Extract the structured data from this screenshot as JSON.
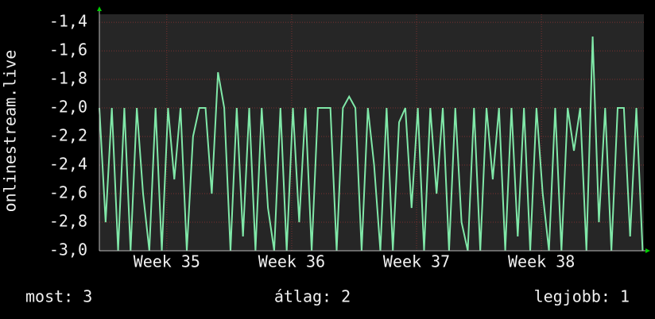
{
  "chart_data": {
    "type": "line",
    "ylabel": "onlinestream.live",
    "x": [
      34.46,
      34.51,
      34.56,
      34.61,
      34.66,
      34.71,
      34.76,
      34.81,
      34.86,
      34.91,
      34.96,
      35.01,
      35.06,
      35.11,
      35.16,
      35.21,
      35.26,
      35.31,
      35.36,
      35.41,
      35.46,
      35.51,
      35.56,
      35.61,
      35.66,
      35.71,
      35.76,
      35.81,
      35.86,
      35.91,
      35.96,
      36.01,
      36.06,
      36.11,
      36.16,
      36.21,
      36.26,
      36.31,
      36.36,
      36.41,
      36.46,
      36.51,
      36.56,
      36.61,
      36.66,
      36.71,
      36.76,
      36.81,
      36.86,
      36.91,
      36.96,
      37.01,
      37.06,
      37.11,
      37.16,
      37.21,
      37.26,
      37.31,
      37.36,
      37.41,
      37.46,
      37.51,
      37.56,
      37.61,
      37.66,
      37.71,
      37.76,
      37.81,
      37.86,
      37.91,
      37.96,
      38.01,
      38.06,
      38.11,
      38.16,
      38.21,
      38.26,
      38.31,
      38.36,
      38.41,
      38.46,
      38.51,
      38.56,
      38.61,
      38.66,
      38.71,
      38.76,
      38.81
    ],
    "series": [
      {
        "name": "onlinestream.live",
        "color": "#80e8a8",
        "values": [
          -2.0,
          -2.8,
          -2.0,
          -3.0,
          -2.0,
          -3.0,
          -2.0,
          -2.6,
          -3.0,
          -2.0,
          -3.0,
          -2.0,
          -2.5,
          -2.0,
          -3.0,
          -2.2,
          -2.0,
          -2.0,
          -2.6,
          -1.75,
          -2.0,
          -3.0,
          -2.0,
          -2.9,
          -2.0,
          -3.0,
          -2.0,
          -2.7,
          -3.0,
          -2.0,
          -3.0,
          -2.0,
          -2.8,
          -2.0,
          -3.0,
          -2.0,
          -2.0,
          -2.0,
          -3.0,
          -2.0,
          -1.92,
          -2.0,
          -3.0,
          -2.0,
          -2.4,
          -3.0,
          -2.0,
          -3.0,
          -2.1,
          -2.0,
          -2.7,
          -2.0,
          -3.0,
          -2.0,
          -2.6,
          -2.0,
          -3.0,
          -2.0,
          -2.8,
          -3.0,
          -2.0,
          -3.0,
          -2.0,
          -2.5,
          -2.0,
          -3.0,
          -2.0,
          -2.9,
          -2.0,
          -3.0,
          -2.0,
          -2.6,
          -3.0,
          -2.0,
          -3.0,
          -2.0,
          -2.3,
          -2.0,
          -3.0,
          -1.5,
          -2.8,
          -2.0,
          -3.0,
          -2.0,
          -2.0,
          -2.9,
          -2.0,
          -3.0
        ]
      }
    ],
    "xlim": [
      34.46,
      38.82
    ],
    "xticks": [
      {
        "value": 35,
        "label": "Week 35"
      },
      {
        "value": 36,
        "label": "Week 36"
      },
      {
        "value": 37,
        "label": "Week 37"
      },
      {
        "value": 38,
        "label": "Week 38"
      }
    ],
    "ylim": [
      -3.0,
      -1.344
    ],
    "yticks": [
      {
        "value": -3.0,
        "label": "-3,0"
      },
      {
        "value": -2.8,
        "label": "-2,8"
      },
      {
        "value": -2.6,
        "label": "-2,6"
      },
      {
        "value": -2.4,
        "label": "-2,4"
      },
      {
        "value": -2.2,
        "label": "-2,2"
      },
      {
        "value": -2.0,
        "label": "-2,0"
      },
      {
        "value": -1.8,
        "label": "-1,8"
      },
      {
        "value": -1.6,
        "label": "-1,6"
      },
      {
        "value": -1.4,
        "label": "-1,4"
      }
    ],
    "grid": true,
    "footer": [
      "most: 3",
      "átlag: 2",
      "legjobb: 1"
    ]
  }
}
